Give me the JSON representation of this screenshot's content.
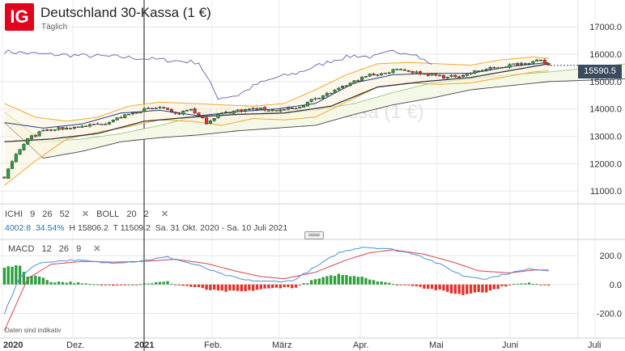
{
  "header": {
    "logo": "IG",
    "title": "Deutschland 30-Kassa (1 €)",
    "subtitle": "Täglich",
    "watermark": "Deutschland 30-Kassa (1 €)"
  },
  "indicators": {
    "ichi": {
      "name": "ICHI",
      "params": [
        "9",
        "26",
        "52"
      ]
    },
    "boll": {
      "name": "BOLL",
      "params": [
        "20",
        "2"
      ]
    },
    "macd": {
      "name": "MACD",
      "params": [
        "12",
        "26",
        "9"
      ]
    },
    "close_label": "✕"
  },
  "stats": {
    "points": "4002.8",
    "percent": "34.54%",
    "high": "H 15806.2",
    "low": "T 11509.2",
    "range": "Sa. 31 Okt. 2020 - Sa. 10 Juli 2021"
  },
  "price_tag": "15590.5",
  "disclaimer": "Daten sind indikativ",
  "colors": {
    "up": "#2e9e3e",
    "down": "#e0342c",
    "bb": "#f0a830",
    "ichi_span": "#6a5fa0",
    "ichi_base": "#333333",
    "ichi_conv": "#1f3c88",
    "cloud": "#f4f8e6",
    "macd": "#4a90d9",
    "signal": "#d9434c",
    "accent": "#e4001b"
  },
  "chart_data": [
    {
      "type": "line",
      "title": "Deutschland 30-Kassa (1 €)",
      "y_ticks": [
        11000,
        12000,
        13000,
        14000,
        15000,
        16000,
        17000
      ],
      "y_tick_labels": [
        "11000.0",
        "12000.0",
        "13000.0",
        "14000.0",
        "15000.0",
        "16000.0",
        "17000.0"
      ],
      "ylim": [
        10650,
        17450
      ],
      "x_labels": [
        "2020",
        "Dez.",
        "2021",
        "Feb.",
        "März",
        "Apr.",
        "Mai",
        "Juni",
        "Juli"
      ],
      "price_knots": [
        [
          0,
          11500
        ],
        [
          3,
          12300
        ],
        [
          6,
          12900
        ],
        [
          10,
          13200
        ],
        [
          16,
          13300
        ],
        [
          22,
          13400
        ],
        [
          26,
          13500
        ],
        [
          30,
          13700
        ],
        [
          35,
          13950
        ],
        [
          40,
          14050
        ],
        [
          44,
          13800
        ],
        [
          48,
          14000
        ],
        [
          52,
          13500
        ],
        [
          55,
          13800
        ],
        [
          60,
          13950
        ],
        [
          65,
          14000
        ],
        [
          70,
          13950
        ],
        [
          75,
          14000
        ],
        [
          80,
          14400
        ],
        [
          85,
          14650
        ],
        [
          90,
          15000
        ],
        [
          94,
          15250
        ],
        [
          98,
          15300
        ],
        [
          101,
          15500
        ],
        [
          105,
          15350
        ],
        [
          110,
          15250
        ],
        [
          114,
          15150
        ],
        [
          118,
          15250
        ],
        [
          122,
          15400
        ],
        [
          126,
          15500
        ],
        [
          130,
          15600
        ],
        [
          134,
          15700
        ],
        [
          138,
          15750
        ],
        [
          140,
          15590
        ]
      ],
      "bb_upper_knots": [
        [
          0,
          14200
        ],
        [
          8,
          13700
        ],
        [
          16,
          13550
        ],
        [
          24,
          13700
        ],
        [
          32,
          14100
        ],
        [
          40,
          14250
        ],
        [
          48,
          14200
        ],
        [
          56,
          14150
        ],
        [
          64,
          14100
        ],
        [
          72,
          14200
        ],
        [
          80,
          14700
        ],
        [
          88,
          15250
        ],
        [
          96,
          15650
        ],
        [
          104,
          15700
        ],
        [
          112,
          15650
        ],
        [
          120,
          15600
        ],
        [
          128,
          15800
        ],
        [
          136,
          15900
        ],
        [
          140,
          15850
        ]
      ],
      "bb_lower_knots": [
        [
          0,
          11200
        ],
        [
          8,
          12100
        ],
        [
          16,
          12900
        ],
        [
          24,
          13150
        ],
        [
          32,
          13350
        ],
        [
          40,
          13600
        ],
        [
          48,
          13550
        ],
        [
          56,
          13400
        ],
        [
          64,
          13650
        ],
        [
          72,
          13600
        ],
        [
          80,
          13700
        ],
        [
          88,
          14250
        ],
        [
          96,
          14800
        ],
        [
          104,
          14950
        ],
        [
          112,
          14900
        ],
        [
          120,
          14950
        ],
        [
          128,
          15150
        ],
        [
          136,
          15350
        ],
        [
          140,
          15400
        ]
      ],
      "span_a_knots": [
        [
          0,
          13900
        ],
        [
          10,
          12800
        ],
        [
          20,
          12900
        ],
        [
          30,
          13100
        ],
        [
          40,
          13400
        ],
        [
          50,
          13750
        ],
        [
          60,
          13800
        ],
        [
          70,
          13850
        ],
        [
          80,
          13950
        ],
        [
          90,
          14200
        ],
        [
          100,
          14600
        ],
        [
          110,
          14950
        ],
        [
          120,
          15100
        ],
        [
          130,
          15250
        ],
        [
          140,
          15350
        ],
        [
          150,
          15500
        ],
        [
          160,
          15650
        ]
      ],
      "span_b_knots": [
        [
          0,
          13500
        ],
        [
          10,
          12200
        ],
        [
          20,
          12450
        ],
        [
          30,
          12800
        ],
        [
          40,
          12950
        ],
        [
          50,
          13050
        ],
        [
          60,
          13200
        ],
        [
          70,
          13300
        ],
        [
          80,
          13400
        ],
        [
          90,
          13800
        ],
        [
          100,
          14150
        ],
        [
          110,
          14400
        ],
        [
          120,
          14700
        ],
        [
          130,
          14850
        ],
        [
          140,
          15000
        ],
        [
          150,
          15050
        ],
        [
          160,
          15100
        ]
      ],
      "kijun_knots": [
        [
          0,
          12800
        ],
        [
          12,
          12900
        ],
        [
          24,
          13100
        ],
        [
          36,
          13550
        ],
        [
          48,
          13700
        ],
        [
          60,
          13800
        ],
        [
          72,
          13850
        ],
        [
          84,
          14100
        ],
        [
          96,
          14800
        ],
        [
          108,
          15000
        ],
        [
          120,
          15150
        ],
        [
          132,
          15450
        ],
        [
          140,
          15650
        ]
      ],
      "tenkan_knots": [
        [
          0,
          13500
        ],
        [
          10,
          13300
        ],
        [
          20,
          13450
        ],
        [
          30,
          13850
        ],
        [
          40,
          13950
        ],
        [
          50,
          13750
        ],
        [
          60,
          13900
        ],
        [
          70,
          14000
        ],
        [
          80,
          14200
        ],
        [
          90,
          14950
        ],
        [
          100,
          15250
        ],
        [
          110,
          15300
        ],
        [
          120,
          15300
        ],
        [
          130,
          15550
        ],
        [
          140,
          15700
        ]
      ],
      "chikou_knots": [
        [
          0,
          16100
        ],
        [
          10,
          16000
        ],
        [
          20,
          15950
        ],
        [
          30,
          15900
        ],
        [
          40,
          15800
        ],
        [
          50,
          15700
        ],
        [
          55,
          14400
        ],
        [
          60,
          14500
        ],
        [
          65,
          14900
        ],
        [
          70,
          15150
        ],
        [
          75,
          15300
        ],
        [
          80,
          15550
        ],
        [
          85,
          15800
        ],
        [
          90,
          15950
        ],
        [
          95,
          15900
        ],
        [
          100,
          16100
        ],
        [
          105,
          16050
        ],
        [
          110,
          15600
        ]
      ],
      "series": [
        {
          "name": "15590.5",
          "values": "candles computed from price_knots"
        }
      ]
    },
    {
      "type": "bar",
      "title": "MACD 12 26 9",
      "y_ticks": [
        -200,
        0,
        200
      ],
      "y_tick_labels": [
        "-200.0",
        "0.0",
        "200.0"
      ],
      "ylim": [
        -270,
        290
      ],
      "macd_knots": [
        [
          0,
          -200
        ],
        [
          4,
          50
        ],
        [
          8,
          140
        ],
        [
          12,
          160
        ],
        [
          18,
          170
        ],
        [
          26,
          150
        ],
        [
          34,
          160
        ],
        [
          42,
          190
        ],
        [
          50,
          130
        ],
        [
          56,
          70
        ],
        [
          62,
          30
        ],
        [
          68,
          20
        ],
        [
          74,
          25
        ],
        [
          80,
          120
        ],
        [
          86,
          220
        ],
        [
          92,
          260
        ],
        [
          98,
          250
        ],
        [
          106,
          210
        ],
        [
          112,
          140
        ],
        [
          118,
          60
        ],
        [
          124,
          40
        ],
        [
          130,
          80
        ],
        [
          136,
          110
        ],
        [
          140,
          95
        ]
      ],
      "signal_knots": [
        [
          0,
          -320
        ],
        [
          6,
          40
        ],
        [
          12,
          140
        ],
        [
          20,
          160
        ],
        [
          28,
          155
        ],
        [
          36,
          160
        ],
        [
          44,
          175
        ],
        [
          52,
          145
        ],
        [
          60,
          90
        ],
        [
          66,
          55
        ],
        [
          72,
          40
        ],
        [
          80,
          85
        ],
        [
          88,
          170
        ],
        [
          94,
          220
        ],
        [
          100,
          240
        ],
        [
          108,
          210
        ],
        [
          116,
          150
        ],
        [
          122,
          95
        ],
        [
          130,
          80
        ],
        [
          136,
          100
        ],
        [
          140,
          100
        ]
      ]
    }
  ]
}
